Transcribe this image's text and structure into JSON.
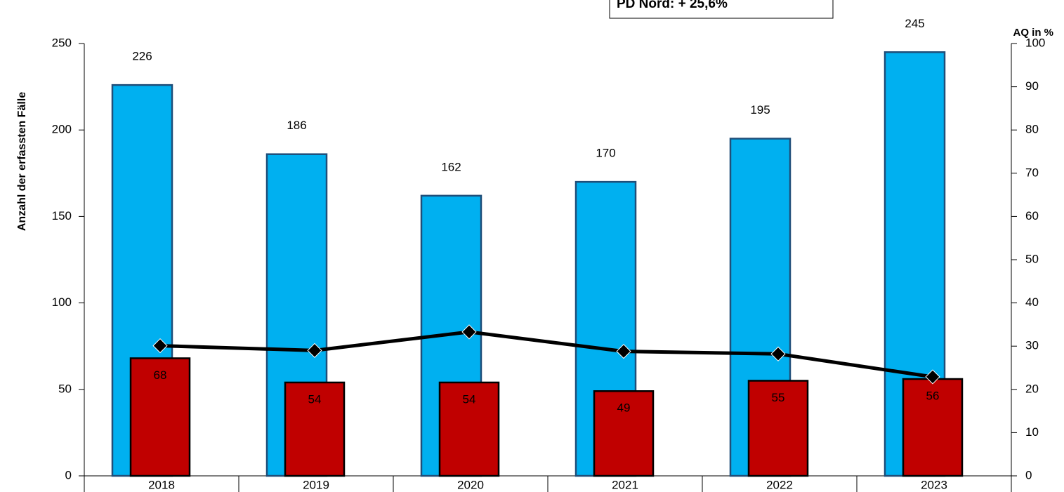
{
  "chart_data": {
    "type": "bar-line",
    "annotation": "PD Nord: + 25,6%",
    "ylabel": "Anzahl der erfassten Fälle",
    "y2label": "AQ in %",
    "categories": [
      "2018",
      "2019",
      "2020",
      "2021",
      "2022",
      "2023"
    ],
    "series": [
      {
        "type": "bar",
        "color": "#00b0f0",
        "values": [
          226,
          186,
          162,
          170,
          195,
          245
        ]
      },
      {
        "type": "bar",
        "color": "#c00000",
        "values": [
          68,
          54,
          54,
          49,
          55,
          56
        ]
      },
      {
        "type": "line",
        "axis": "y2",
        "color": "#000000",
        "values": [
          30.1,
          29.0,
          33.3,
          28.8,
          28.2,
          22.9
        ]
      }
    ],
    "ylim": [
      0,
      250
    ],
    "yticks": [
      0,
      50,
      100,
      150,
      200,
      250
    ],
    "y2lim": [
      0,
      100
    ],
    "y2ticks": [
      0,
      10,
      20,
      30,
      40,
      50,
      60,
      70,
      80,
      90,
      100
    ]
  }
}
